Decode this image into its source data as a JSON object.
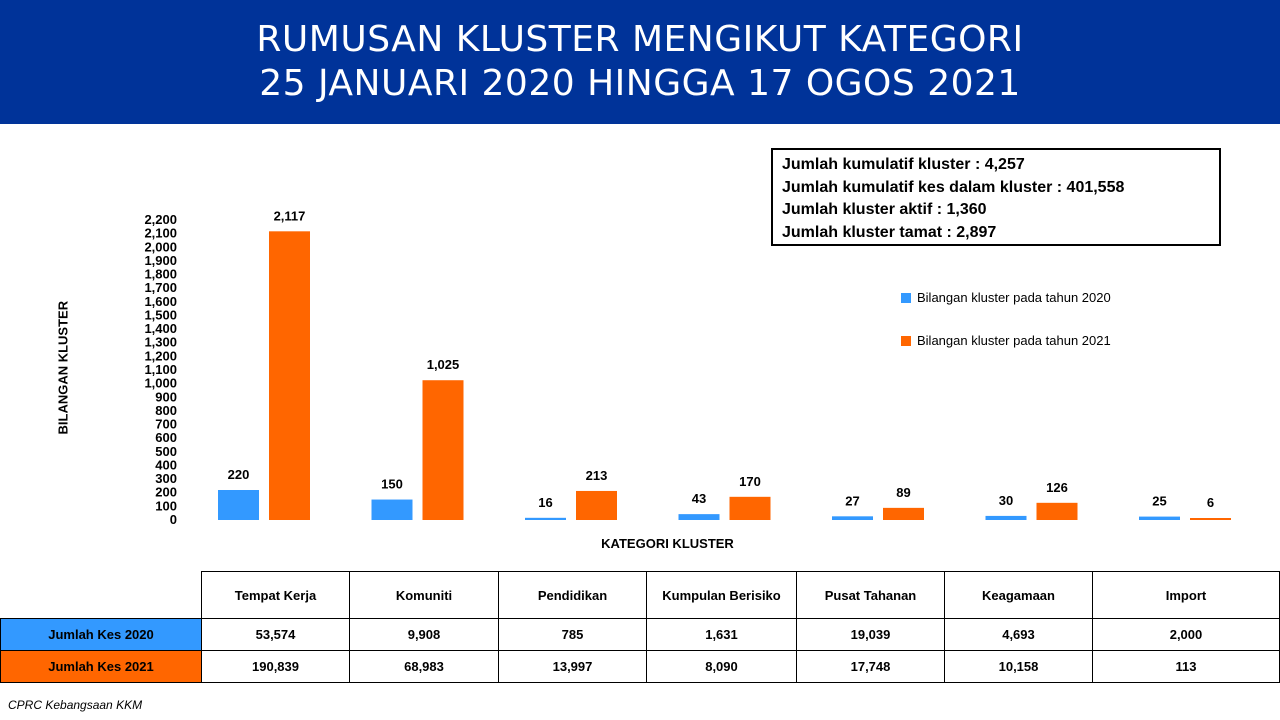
{
  "header": {
    "title_line1": "RUMUSAN KLUSTER MENGIKUT KATEGORI",
    "title_line2": "25 JANUARI 2020 HINGGA 17 OGOS 2021",
    "background": "#003399"
  },
  "info_box": {
    "lines": [
      "Jumlah kumulatif kluster : 4,257",
      "Jumlah kumulatif kes dalam kluster : 401,558",
      "Jumlah kluster aktif : 1,360",
      "Jumlah kluster tamat : 2,897"
    ]
  },
  "chart_data": {
    "type": "bar",
    "title": "RUMUSAN KLUSTER MENGIKUT KATEGORI",
    "subtitle": "25 JANUARI 2020 HINGGA 17 OGOS 2021",
    "xlabel": "KATEGORI KLUSTER",
    "ylabel": "BILANGAN KLUSTER",
    "categories": [
      "Tempat Kerja",
      "Komuniti",
      "Pendidikan",
      "Kumpulan Berisiko",
      "Pusat Tahanan",
      "Keagamaan",
      "Import"
    ],
    "series": [
      {
        "name": "Bilangan kluster pada tahun 2020",
        "values": [
          220,
          150,
          16,
          43,
          27,
          30,
          25
        ],
        "labels": [
          "220",
          "150",
          "16",
          "43",
          "27",
          "30",
          "25"
        ],
        "color": "#3399ff"
      },
      {
        "name": "Bilangan kluster pada tahun 2021",
        "values": [
          2117,
          1025,
          213,
          170,
          89,
          126,
          6
        ],
        "labels": [
          "2,117",
          "1,025",
          "213",
          "170",
          "89",
          "126",
          "6"
        ],
        "color": "#ff6600"
      }
    ],
    "ylim": [
      0,
      2200
    ],
    "yticks": [
      "0",
      "100",
      "200",
      "300",
      "400",
      "500",
      "600",
      "700",
      "800",
      "900",
      "1,000",
      "1,100",
      "1,200",
      "1,300",
      "1,400",
      "1,500",
      "1,600",
      "1,700",
      "1,800",
      "1,900",
      "2,000",
      "2,100",
      "2,200"
    ],
    "grid": false,
    "legend_position": "right"
  },
  "table": {
    "headers": [
      "Tempat Kerja",
      "Komuniti",
      "Pendidikan",
      "Kumpulan Berisiko",
      "Pusat Tahanan",
      "Keagamaan",
      "Import"
    ],
    "rows": [
      {
        "label": "Jumlah Kes 2020",
        "label_color": "#3399ff",
        "values": [
          "53,574",
          "9,908",
          "785",
          "1,631",
          "19,039",
          "4,693",
          "2,000"
        ]
      },
      {
        "label": "Jumlah Kes 2021",
        "label_color": "#ff6600",
        "values": [
          "190,839",
          "68,983",
          "13,997",
          "8,090",
          "17,748",
          "10,158",
          "113"
        ]
      }
    ]
  },
  "footer": "CPRC Kebangsaan KKM"
}
